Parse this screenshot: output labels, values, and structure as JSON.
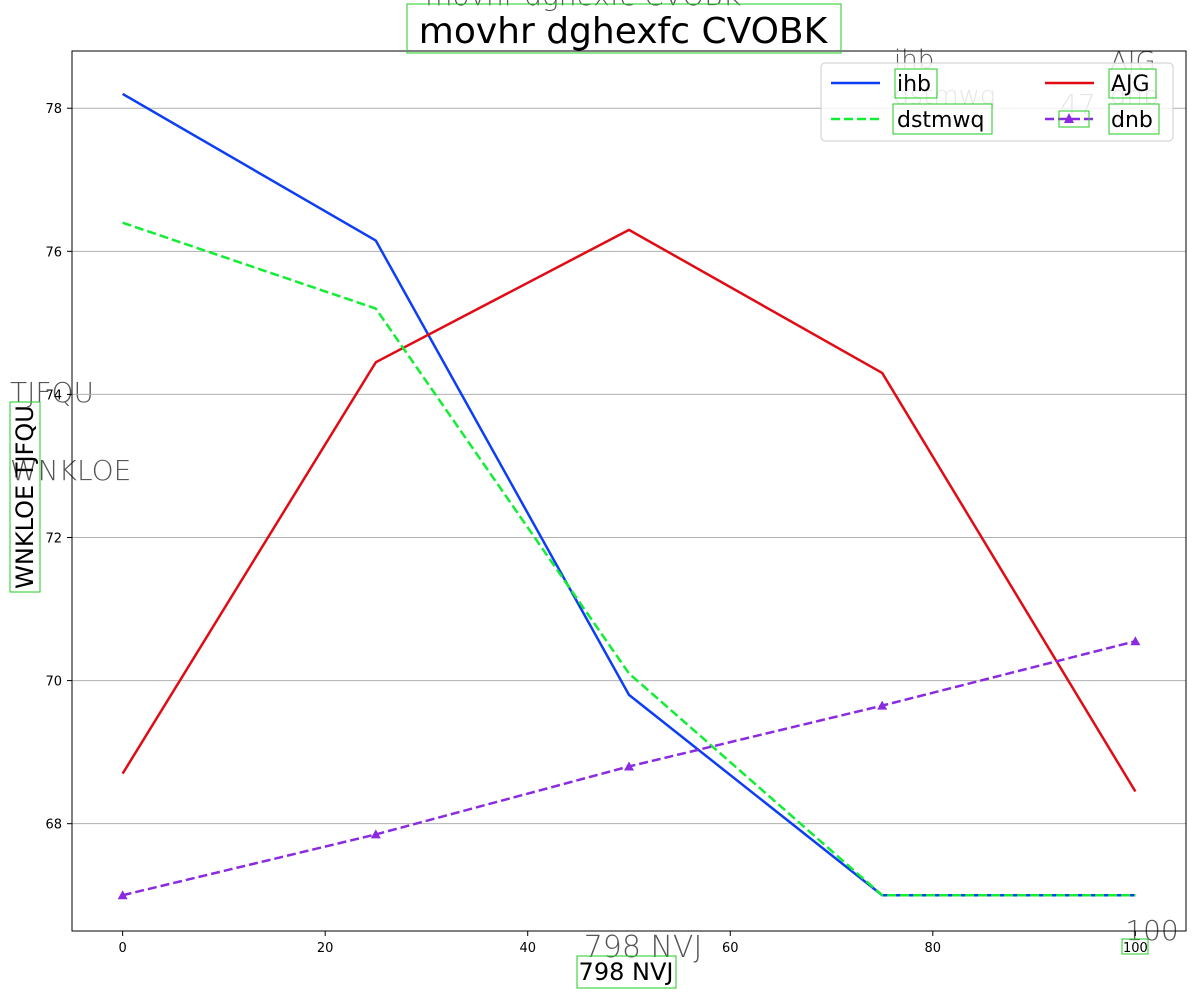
{
  "chart_data": {
    "type": "line",
    "title": "movhr dghexfc CVOBK",
    "xlabel": "798 NVJ",
    "ylabel": "WNKLOE TJFQU",
    "ylabel_parts": [
      "WNKLOE",
      "TJFQU"
    ],
    "x": [
      0,
      25,
      50,
      75,
      100
    ],
    "xlim": [
      -5,
      105
    ],
    "ylim": [
      66.5,
      78.8
    ],
    "x_ticks": [
      "0",
      "20",
      "40",
      "60",
      "80",
      "100"
    ],
    "y_ticks": [
      "68",
      "70",
      "72",
      "74",
      "76",
      "78"
    ],
    "grid": "horizontal",
    "legend_position": "top-right",
    "series": [
      {
        "name": "ihb",
        "color": "#0d3ef5",
        "dash": "solid",
        "marker": "none",
        "values": [
          78.2,
          76.15,
          69.8,
          67.0,
          67.0
        ]
      },
      {
        "name": "AJG",
        "color": "#e00b14",
        "dash": "solid",
        "marker": "none",
        "values": [
          68.7,
          74.45,
          76.3,
          74.3,
          68.45
        ]
      },
      {
        "name": "dstmwq",
        "color": "#11ee33",
        "dash": "dashed",
        "marker": "none",
        "values": [
          76.4,
          75.2,
          70.1,
          67.0,
          67.0
        ]
      },
      {
        "name": "dnb",
        "color": "#8a2be2",
        "dash": "dashed",
        "marker": "triangle",
        "values": [
          67.0,
          67.85,
          68.8,
          69.65,
          70.55
        ]
      }
    ],
    "annotations": [
      "47"
    ]
  }
}
